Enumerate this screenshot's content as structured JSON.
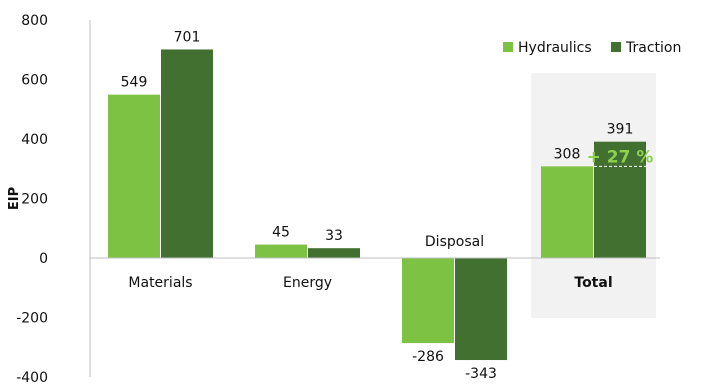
{
  "chart_data": {
    "type": "bar",
    "categories": [
      "Materials",
      "Energy",
      "Disposal",
      "Total"
    ],
    "series": [
      {
        "name": "Hydraulics",
        "values": [
          549,
          45,
          -286,
          308
        ],
        "color": "#7dc242"
      },
      {
        "name": "Traction",
        "values": [
          701,
          33,
          -343,
          391
        ],
        "color": "#427030"
      }
    ],
    "ylabel": "EIP",
    "ylim": [
      -400,
      800
    ],
    "yticks": [
      -400,
      -200,
      0,
      200,
      400,
      600,
      800
    ],
    "grid": false,
    "legend_position": "top-right",
    "highlight_category": "Total",
    "highlight_background": "#f2f2f2",
    "annotation": {
      "text": "+ 27 %",
      "category": "Total",
      "series": "Traction",
      "from_value": 308,
      "color": "#8fd14f"
    }
  }
}
